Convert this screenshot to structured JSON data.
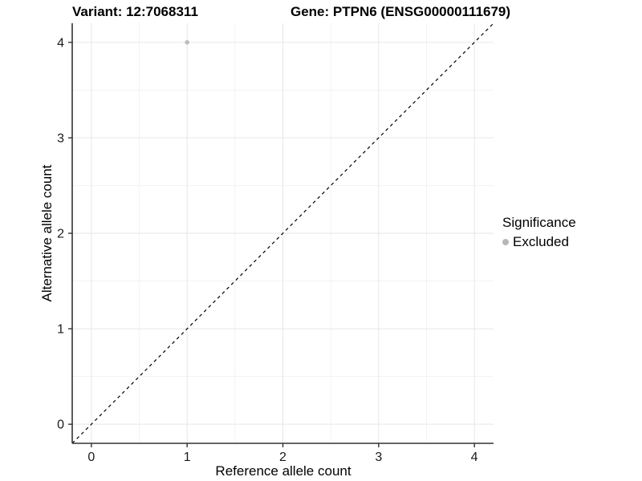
{
  "titles": {
    "variant": "Variant: 12:7068311",
    "gene": "Gene: PTPN6 (ENSG00000111679)"
  },
  "chart_data": {
    "type": "scatter",
    "title": "",
    "xlabel": "Reference allele count",
    "ylabel": "Alternative allele count",
    "xlim": [
      -0.2,
      4.2
    ],
    "ylim": [
      -0.2,
      4.2
    ],
    "x_ticks": [
      0,
      1,
      2,
      3,
      4
    ],
    "y_ticks": [
      0,
      1,
      2,
      3,
      4
    ],
    "x_minor_ticks": [
      0.5,
      1.5,
      2.5,
      3.5
    ],
    "y_minor_ticks": [
      0.5,
      1.5,
      2.5,
      3.5
    ],
    "grid": true,
    "series": [
      {
        "name": "Excluded",
        "points": [
          {
            "x": 1,
            "y": 4
          }
        ]
      }
    ],
    "reference_line": {
      "description": "identity line y = x",
      "style": "dashed",
      "from": [
        -0.2,
        -0.2
      ],
      "to": [
        4.2,
        4.2
      ]
    },
    "legend": {
      "title": "Significance",
      "position": "right",
      "entries": [
        {
          "label": "Excluded",
          "color": "#b7b7b7"
        }
      ]
    }
  },
  "colors": {
    "point": "#bdbdbd",
    "grid_major": "#e6e6e6",
    "grid_minor": "#f3f3f3",
    "axis_line": "#333333",
    "tick_mark": "#333333",
    "tick_label": "#1a1a1a",
    "dashed_line": "#000000",
    "background": "#ffffff"
  }
}
